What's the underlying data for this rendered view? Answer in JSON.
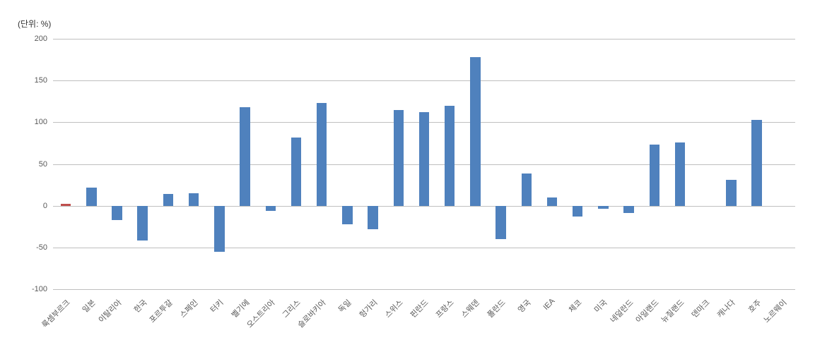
{
  "chart": {
    "type": "bar",
    "unit_label": "(단위: %)",
    "unit_label_fontsize": 12,
    "unit_label_color": "#333333",
    "background_color": "#ffffff",
    "grid_color": "#bfbfbf",
    "bar_color": "#4f81bd",
    "accent_bar_color": "#c0504d",
    "label_fontsize": 11,
    "label_color": "#595959",
    "ylim": [
      -100,
      200
    ],
    "ytick_step": 50,
    "yticks": [
      -100,
      -50,
      0,
      50,
      100,
      150,
      200
    ],
    "bar_width_ratio": 0.4,
    "categories": [
      "룩셈부르크",
      "일본",
      "이탈리아",
      "한국",
      "포르투갈",
      "스페인",
      "터키",
      "벨기에",
      "오스트리아",
      "그리스",
      "슬로바키아",
      "독일",
      "헝가리",
      "스위스",
      "핀란드",
      "프랑스",
      "스웨덴",
      "폴란드",
      "영국",
      "IEA",
      "체코",
      "미국",
      "네덜란드",
      "아일랜드",
      "뉴질랜드",
      "덴마크",
      "캐나다",
      "호주",
      "노르웨이"
    ],
    "values": [
      2,
      22,
      -17,
      -42,
      14,
      15,
      -55,
      118,
      -6,
      82,
      123,
      -22,
      -28,
      115,
      112,
      120,
      178,
      -40,
      39,
      10,
      -13,
      -4,
      -9,
      73,
      76,
      0,
      31,
      103,
      0
    ],
    "accent_indices": [
      0
    ]
  }
}
